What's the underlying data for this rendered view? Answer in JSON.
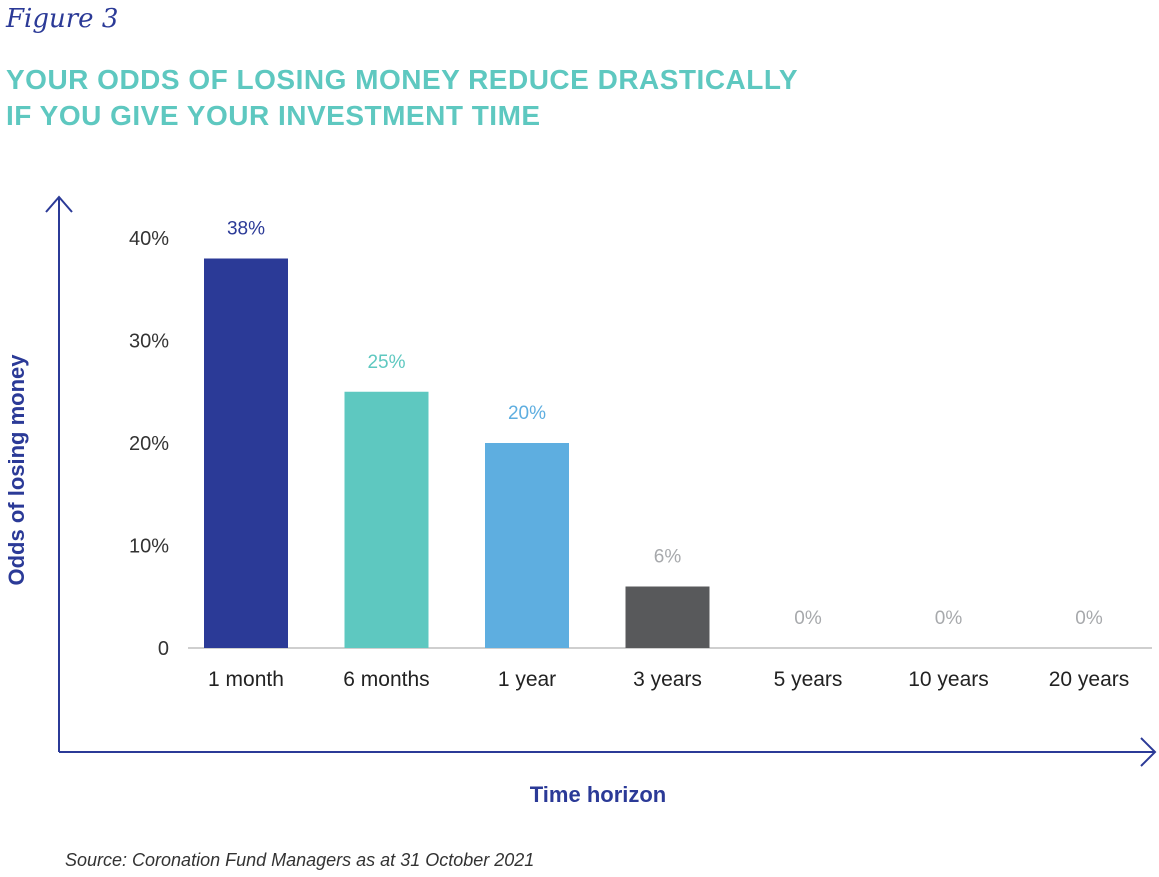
{
  "figure_label": "Figure 3",
  "title_lines": [
    "YOUR ODDS OF LOSING MONEY REDUCE DRASTICALLY",
    "IF YOU GIVE YOUR INVESTMENT TIME"
  ],
  "source": "Source: Coronation Fund Managers as at 31 October 2021",
  "chart_data": {
    "type": "bar",
    "categories": [
      "1 month",
      "6 months",
      "1 year",
      "3 years",
      "5 years",
      "10 years",
      "20 years"
    ],
    "values": [
      38,
      25,
      20,
      6,
      0,
      0,
      0
    ],
    "data_labels": [
      "38%",
      "25%",
      "20%",
      "6%",
      "0%",
      "0%",
      "0%"
    ],
    "bar_colors": [
      "#2b3a97",
      "#5ec8c0",
      "#5eaee0",
      "#58595b",
      "#bdbdbd",
      "#bdbdbd",
      "#bdbdbd"
    ],
    "label_colors": [
      "#2b3a97",
      "#5ec8c0",
      "#5eaee0",
      "#a7a9ac",
      "#a7a9ac",
      "#a7a9ac",
      "#a7a9ac"
    ],
    "xlabel": "Time horizon",
    "ylabel": "Odds of losing money",
    "ylim": [
      0,
      40
    ],
    "yticks": [
      0,
      10,
      20,
      30,
      40
    ],
    "ytick_labels": [
      "0",
      "10%",
      "20%",
      "30%",
      "40%"
    ],
    "axis_color": "#2b3a97",
    "grid": false
  }
}
